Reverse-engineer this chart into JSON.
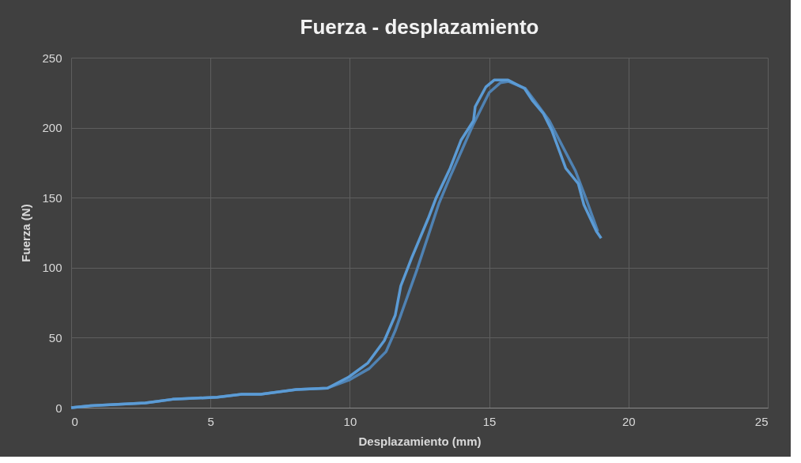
{
  "chart_data": {
    "type": "line",
    "title": "Fuerza - desplazamiento",
    "xlabel": "Desplazamiento (mm)",
    "ylabel": "Fuerza (N)",
    "xlim": [
      0,
      25
    ],
    "xticks": [
      0,
      5,
      10,
      15,
      20,
      25
    ],
    "ylim": [
      0,
      250
    ],
    "yticks": [
      0,
      50,
      100,
      150,
      200,
      250
    ],
    "grid": true,
    "marker": "none",
    "line_style": "solid",
    "series": [
      {
        "color": "#4f82b3",
        "x": [
          0,
          0.7,
          2.66,
          3.64,
          5.24,
          6.12,
          6.8,
          8.08,
          9.2,
          10.0,
          10.7,
          11.3,
          11.63,
          12.4,
          13.2,
          13.6,
          14.4,
          15.0,
          15.4,
          15.7,
          16.3,
          16.6,
          17.16,
          17.6,
          18.1,
          18.5,
          18.9
        ],
        "values": [
          0,
          1.4,
          3.4,
          6,
          7.5,
          9.6,
          9.6,
          13,
          14,
          20,
          28,
          40,
          55,
          98,
          146,
          165,
          201,
          225,
          232,
          233,
          228,
          220,
          205,
          188,
          169,
          148,
          126
        ]
      },
      {
        "color": "#5b9bd5",
        "x": [
          0,
          0.7,
          2.66,
          3.64,
          5.24,
          6.12,
          6.8,
          8.08,
          9.2,
          9.97,
          10.65,
          11.24,
          11.63,
          11.83,
          12.22,
          12.81,
          13.1,
          13.6,
          13.99,
          14.44,
          14.5,
          14.88,
          15.18,
          15.68,
          16.27,
          16.57,
          16.95,
          17.25,
          17.75,
          18.2,
          18.4,
          18.85,
          19.02
        ],
        "values": [
          0,
          1.4,
          3.4,
          6,
          7.5,
          9.6,
          9.6,
          13,
          14,
          22,
          32,
          48,
          66,
          87,
          107,
          135,
          150,
          171,
          191,
          205,
          215,
          229,
          234,
          234,
          228,
          219,
          210,
          198,
          171,
          160,
          145,
          126,
          121
        ]
      }
    ]
  }
}
